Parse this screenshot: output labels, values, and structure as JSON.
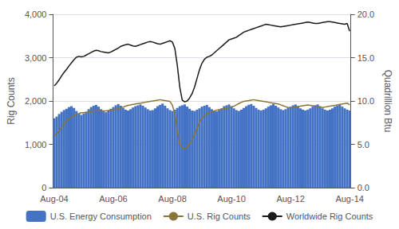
{
  "chart_data": {
    "type": "bar",
    "categories": [
      "Aug-04",
      null,
      null,
      null,
      null,
      null,
      null,
      null,
      null,
      null,
      null,
      null,
      null,
      null,
      null,
      null,
      null,
      null,
      null,
      null,
      null,
      null,
      null,
      null,
      "Aug-06",
      null,
      null,
      null,
      null,
      null,
      null,
      null,
      null,
      null,
      null,
      null,
      null,
      null,
      null,
      null,
      null,
      null,
      null,
      null,
      null,
      null,
      null,
      null,
      "Aug-08",
      null,
      null,
      null,
      null,
      null,
      null,
      null,
      null,
      null,
      null,
      null,
      null,
      null,
      null,
      null,
      null,
      null,
      null,
      null,
      null,
      null,
      null,
      null,
      "Aug-10",
      null,
      null,
      null,
      null,
      null,
      null,
      null,
      null,
      null,
      null,
      null,
      null,
      null,
      null,
      null,
      null,
      null,
      null,
      null,
      null,
      null,
      null,
      null,
      "Aug-12",
      null,
      null,
      null,
      null,
      null,
      null,
      null,
      null,
      null,
      null,
      null,
      null,
      null,
      null,
      null,
      null,
      null,
      null,
      null,
      null,
      null,
      null,
      null,
      "Aug-14"
    ],
    "series": [
      {
        "name": "U.S. Energy Consumption",
        "type": "bar",
        "color": "#4472c4",
        "values": [
          1600,
          1640,
          1700,
          1750,
          1790,
          1820,
          1860,
          1880,
          1840,
          1770,
          1710,
          1680,
          1710,
          1750,
          1810,
          1860,
          1890,
          1910,
          1870,
          1810,
          1760,
          1740,
          1780,
          1820,
          1860,
          1900,
          1930,
          1890,
          1840,
          1800,
          1780,
          1810,
          1850,
          1880,
          1900,
          1920,
          1890,
          1850,
          1810,
          1780,
          1790,
          1830,
          1880,
          1910,
          1940,
          1890,
          1830,
          1790,
          1770,
          1800,
          1840,
          1880,
          1900,
          1920,
          1870,
          1820,
          1780,
          1770,
          1800,
          1830,
          1870,
          1890,
          1910,
          1860,
          1810,
          1770,
          1760,
          1790,
          1830,
          1880,
          1900,
          1920,
          1880,
          1830,
          1790,
          1770,
          1800,
          1840,
          1880,
          1910,
          1930,
          1890,
          1840,
          1800,
          1780,
          1800,
          1830,
          1870,
          1900,
          1930,
          1890,
          1850,
          1810,
          1790,
          1810,
          1840,
          1870,
          1900,
          1920,
          1880,
          1830,
          1800,
          1780,
          1800,
          1830,
          1870,
          1900,
          1920,
          1880,
          1830,
          1800,
          1780,
          1800,
          1830,
          1870,
          1890,
          1910,
          1870,
          1830,
          1800,
          1780
        ]
      },
      {
        "name": "U.S. Rig Counts",
        "type": "line",
        "color": "#8b7536",
        "values": [
          1200,
          1250,
          1310,
          1390,
          1460,
          1540,
          1590,
          1630,
          1660,
          1680,
          1710,
          1730,
          1730,
          1740,
          1750,
          1760,
          1770,
          1780,
          1780,
          1770,
          1770,
          1770,
          1780,
          1790,
          1800,
          1810,
          1820,
          1840,
          1860,
          1880,
          1900,
          1910,
          1920,
          1930,
          1940,
          1950,
          1960,
          1970,
          1980,
          1990,
          2000,
          2010,
          2020,
          2030,
          2020,
          2010,
          2000,
          1990,
          1900,
          1700,
          1300,
          1000,
          920,
          890,
          930,
          1010,
          1110,
          1220,
          1370,
          1510,
          1610,
          1660,
          1710,
          1730,
          1750,
          1770,
          1790,
          1800,
          1810,
          1820,
          1830,
          1840,
          1860,
          1880,
          1910,
          1940,
          1970,
          1990,
          2000,
          2010,
          2020,
          2030,
          2020,
          2010,
          2000,
          1990,
          1980,
          1970,
          1960,
          1950,
          1940,
          1930,
          1910,
          1890,
          1870,
          1850,
          1840,
          1850,
          1860,
          1870,
          1880,
          1890,
          1900,
          1910,
          1900,
          1890,
          1880,
          1870,
          1860,
          1850,
          1860,
          1870,
          1880,
          1890,
          1900,
          1910,
          1920,
          1930,
          1940,
          1950,
          1910
        ]
      },
      {
        "name": "Worldwide Rig Counts",
        "type": "line",
        "color": "#1a1a1a",
        "values": [
          2350,
          2410,
          2490,
          2580,
          2660,
          2730,
          2810,
          2880,
          2950,
          3010,
          3030,
          3020,
          3030,
          3060,
          3090,
          3120,
          3150,
          3170,
          3160,
          3140,
          3130,
          3120,
          3110,
          3130,
          3160,
          3190,
          3220,
          3260,
          3280,
          3300,
          3310,
          3290,
          3270,
          3260,
          3280,
          3300,
          3320,
          3340,
          3360,
          3370,
          3360,
          3340,
          3320,
          3310,
          3330,
          3350,
          3370,
          3390,
          3360,
          3210,
          2820,
          2320,
          2020,
          1980,
          2000,
          2070,
          2170,
          2320,
          2520,
          2720,
          2870,
          2960,
          3010,
          3030,
          3060,
          3110,
          3160,
          3210,
          3260,
          3310,
          3360,
          3410,
          3430,
          3450,
          3470,
          3510,
          3550,
          3590,
          3610,
          3630,
          3650,
          3670,
          3690,
          3710,
          3730,
          3750,
          3770,
          3760,
          3750,
          3740,
          3730,
          3720,
          3710,
          3720,
          3730,
          3740,
          3750,
          3760,
          3770,
          3780,
          3790,
          3800,
          3810,
          3820,
          3810,
          3800,
          3790,
          3790,
          3800,
          3810,
          3820,
          3830,
          3830,
          3820,
          3810,
          3800,
          3790,
          3780,
          3770,
          3790,
          3610
        ]
      }
    ],
    "ylabel": "Rig Counts",
    "y2label": "Quadrillion Btu",
    "ylim": [
      0,
      4000
    ],
    "yticks": [
      0,
      {
        "value": 1000,
        "label": "1,000"
      },
      {
        "value": 2000,
        "label": "2,000"
      },
      {
        "value": 3000,
        "label": "3,000"
      },
      {
        "value": 4000,
        "label": "4,000"
      }
    ],
    "y2lim": [
      0,
      20.0
    ],
    "y2ticks": [
      {
        "value": 0,
        "label": "0.0"
      },
      {
        "value": 5,
        "label": "5.0"
      },
      {
        "value": 10,
        "label": "10.0"
      },
      {
        "value": 15,
        "label": "15.0"
      },
      {
        "value": 20,
        "label": "20.0"
      }
    ],
    "grid": true,
    "legend": "bottom"
  }
}
